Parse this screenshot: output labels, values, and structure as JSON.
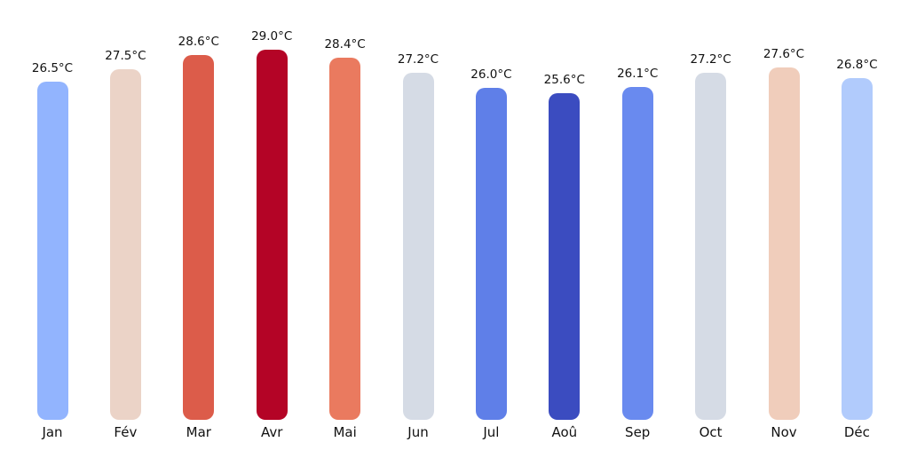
{
  "chart_data": {
    "type": "bar",
    "title": "",
    "xlabel": "",
    "ylabel": "",
    "unit": "°C",
    "categories": [
      "Jan",
      "Fév",
      "Mar",
      "Avr",
      "Mai",
      "Jun",
      "Jul",
      "Aoû",
      "Sep",
      "Oct",
      "Nov",
      "Déc"
    ],
    "values": [
      26.5,
      27.5,
      28.6,
      29.0,
      28.4,
      27.2,
      26.0,
      25.6,
      26.1,
      27.2,
      27.6,
      26.8
    ],
    "value_labels": [
      "26.5°C",
      "27.5°C",
      "28.6°C",
      "29.0°C",
      "28.4°C",
      "27.2°C",
      "26.0°C",
      "25.6°C",
      "26.1°C",
      "27.2°C",
      "27.6°C",
      "26.8°C"
    ],
    "bar_colors": [
      "#92b4fe",
      "#ebd3c7",
      "#dc5c4a",
      "#b40426",
      "#ea7a5f",
      "#d5dbe5",
      "#5f7fe8",
      "#3b4cc0",
      "#698aef",
      "#d5dbe5",
      "#f0cdbb",
      "#b1cbfc"
    ],
    "ylim": [
      0,
      29.0
    ],
    "grid": false,
    "legend": null,
    "axes_visible": false,
    "background_color": "#ffffff",
    "text_color": "#111111"
  }
}
